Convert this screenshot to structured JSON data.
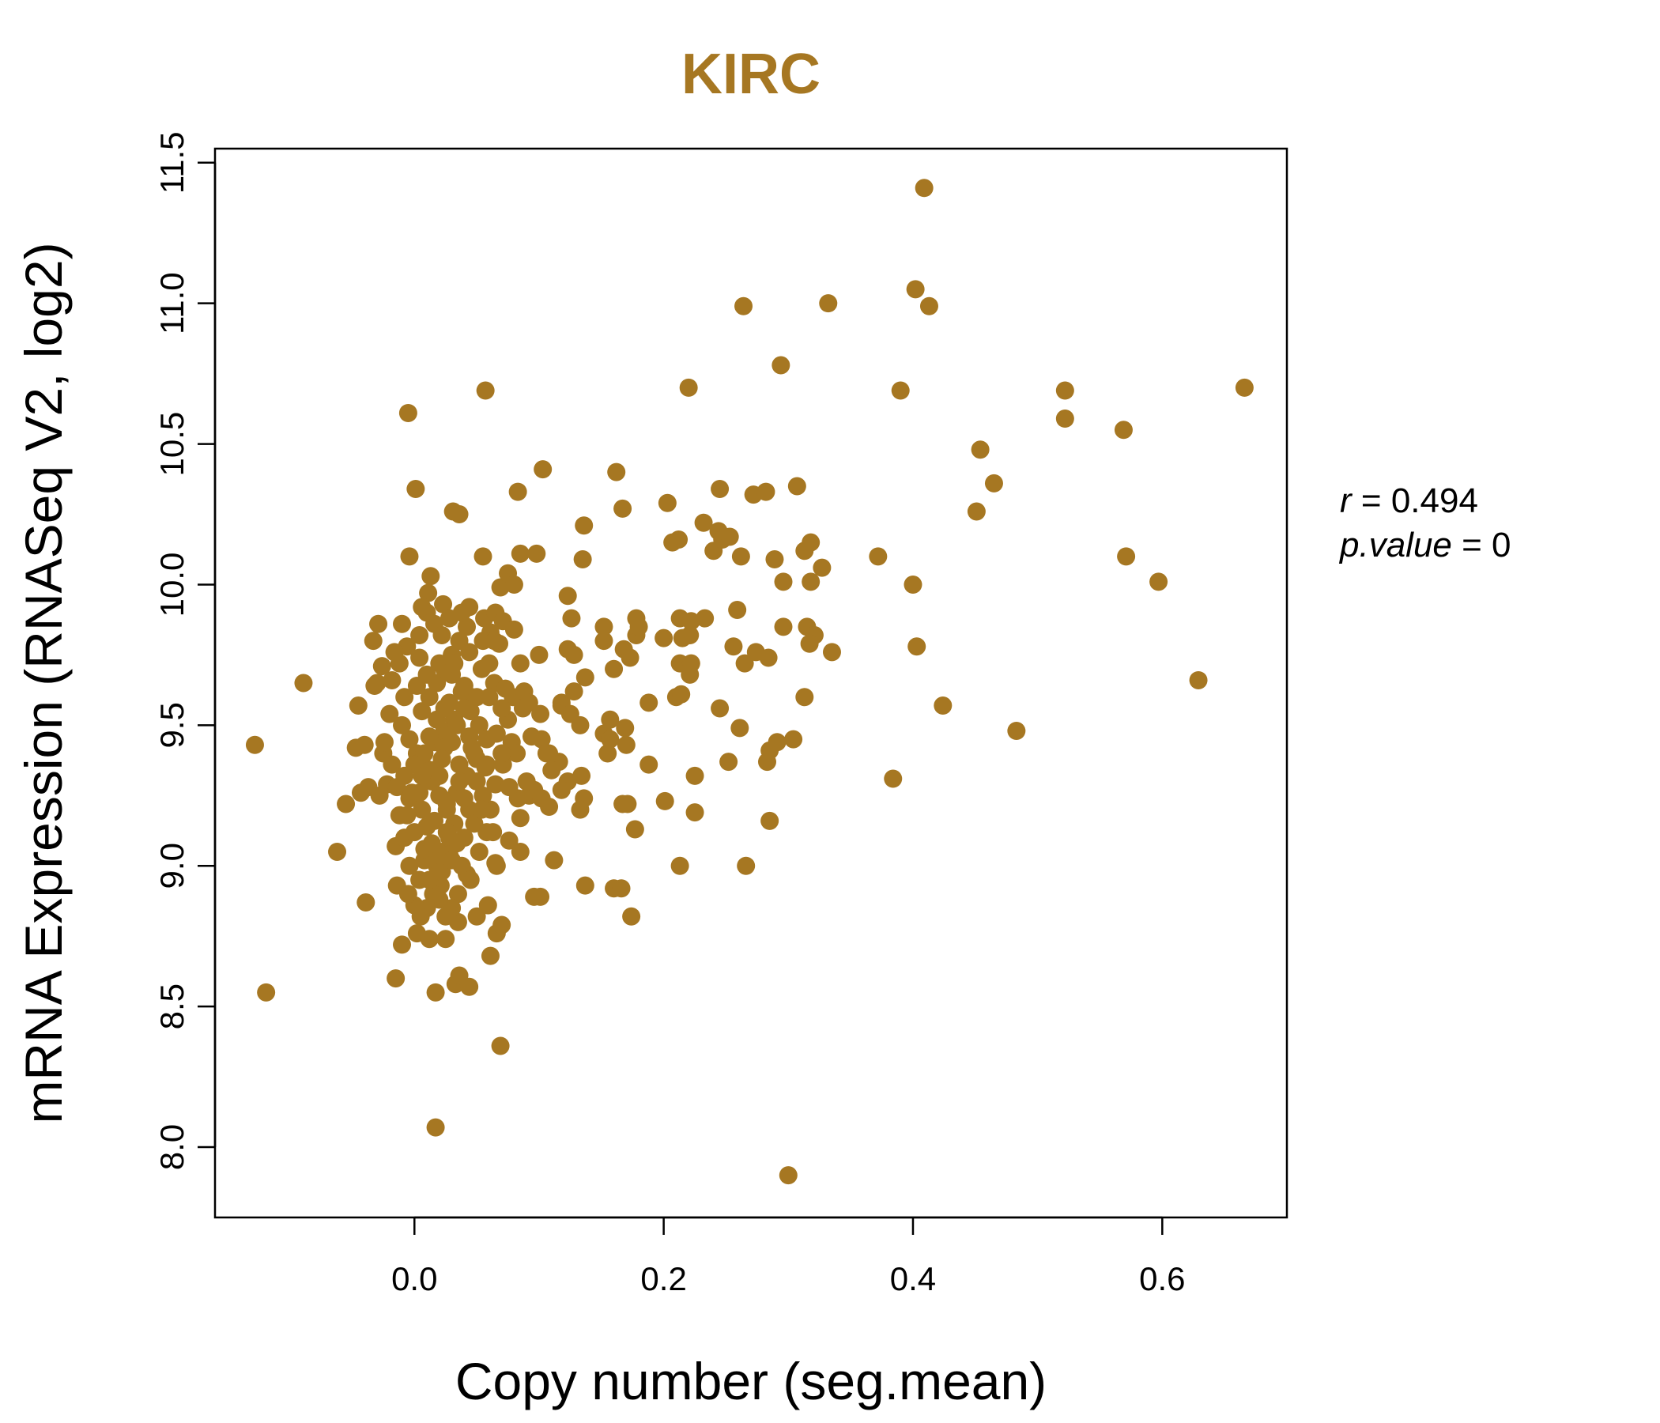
{
  "chart_data": {
    "type": "scatter",
    "title": "KIRC",
    "xlabel": "Copy number (seg.mean)",
    "ylabel": "mRNA Expression (RNASeq V2, log2)",
    "xlim": [
      -0.16,
      0.7
    ],
    "ylim": [
      7.75,
      11.55
    ],
    "xticks": [
      0.0,
      0.2,
      0.4,
      0.6
    ],
    "xtick_labels": [
      "0.0",
      "0.2",
      "0.4",
      "0.6"
    ],
    "yticks": [
      8.0,
      8.5,
      9.0,
      9.5,
      10.0,
      10.5,
      11.0,
      11.5
    ],
    "ytick_labels": [
      "8.0",
      "8.5",
      "9.0",
      "9.5",
      "10.0",
      "10.5",
      "11.0",
      "11.5"
    ],
    "color": "#A67722",
    "stats": {
      "r_label": "r",
      "r_value": "0.494",
      "p_label": "p.value",
      "p_value": "0"
    },
    "points": [
      [
        0.409,
        11.41
      ],
      [
        0.402,
        11.05
      ],
      [
        0.413,
        10.99
      ],
      [
        0.332,
        11.0
      ],
      [
        0.264,
        10.99
      ],
      [
        0.294,
        10.78
      ],
      [
        0.39,
        10.69
      ],
      [
        0.522,
        10.69
      ],
      [
        0.666,
        10.7
      ],
      [
        0.22,
        10.7
      ],
      [
        0.057,
        10.69
      ],
      [
        -0.005,
        10.61
      ],
      [
        0.522,
        10.59
      ],
      [
        0.569,
        10.55
      ],
      [
        0.454,
        10.48
      ],
      [
        0.465,
        10.36
      ],
      [
        0.451,
        10.26
      ],
      [
        0.571,
        10.1
      ],
      [
        0.597,
        10.01
      ],
      [
        0.372,
        10.1
      ],
      [
        0.4,
        10.0
      ],
      [
        0.403,
        9.78
      ],
      [
        0.629,
        9.66
      ],
      [
        0.424,
        9.57
      ],
      [
        0.483,
        9.48
      ],
      [
        0.384,
        9.31
      ],
      [
        0.3,
        7.9
      ],
      [
        0.017,
        8.07
      ],
      [
        0.069,
        8.36
      ],
      [
        -0.119,
        8.55
      ],
      [
        -0.128,
        9.43
      ],
      [
        -0.089,
        9.65
      ],
      [
        -0.062,
        9.05
      ],
      [
        -0.055,
        9.22
      ],
      [
        -0.039,
        8.87
      ],
      [
        -0.015,
        8.6
      ],
      [
        0.017,
        8.55
      ],
      [
        0.033,
        8.58
      ],
      [
        0.036,
        8.61
      ],
      [
        0.044,
        8.57
      ],
      [
        0.061,
        8.68
      ],
      [
        0.066,
        8.76
      ],
      [
        0.07,
        8.79
      ],
      [
        -0.01,
        8.72
      ],
      [
        0.002,
        8.76
      ],
      [
        0.012,
        8.74
      ],
      [
        0.025,
        8.74
      ],
      [
        0.035,
        8.8
      ],
      [
        0.05,
        8.82
      ],
      [
        0.059,
        8.86
      ],
      [
        0.021,
        8.93
      ],
      [
        0.004,
        8.95
      ],
      [
        0.042,
        8.97
      ],
      [
        0.066,
        9.0
      ],
      [
        -0.014,
        8.93
      ],
      [
        0.055,
        10.1
      ],
      [
        0.001,
        10.34
      ],
      [
        0.031,
        10.26
      ],
      [
        0.036,
        10.25
      ],
      [
        -0.004,
        10.1
      ],
      [
        0.013,
        10.03
      ],
      [
        0.011,
        9.97
      ],
      [
        0.023,
        9.93
      ],
      [
        0.044,
        9.92
      ],
      [
        0.069,
        9.99
      ],
      [
        0.075,
        10.04
      ],
      [
        0.085,
        10.11
      ],
      [
        0.098,
        10.11
      ],
      [
        0.083,
        10.33
      ],
      [
        0.103,
        10.41
      ],
      [
        0.08,
        10.0
      ],
      [
        0.056,
        9.88
      ],
      [
        0.065,
        9.9
      ],
      [
        0.071,
        9.87
      ],
      [
        0.061,
        9.83
      ],
      [
        0.055,
        9.8
      ],
      [
        0.068,
        9.79
      ],
      [
        -0.029,
        9.86
      ],
      [
        -0.033,
        9.8
      ],
      [
        -0.026,
        9.71
      ],
      [
        -0.03,
        9.65
      ],
      [
        -0.045,
        9.57
      ],
      [
        -0.047,
        9.42
      ],
      [
        -0.04,
        9.43
      ],
      [
        -0.025,
        9.4
      ],
      [
        -0.018,
        9.36
      ],
      [
        -0.037,
        9.28
      ],
      [
        -0.043,
        9.26
      ],
      [
        -0.028,
        9.25
      ],
      [
        -0.022,
        9.29
      ],
      [
        -0.012,
        9.18
      ],
      [
        -0.015,
        9.07
      ],
      [
        -0.008,
        9.1
      ],
      [
        -0.004,
        9.0
      ],
      [
        0.008,
        9.02
      ],
      [
        0.064,
        9.65
      ],
      [
        0.073,
        9.63
      ],
      [
        0.079,
        9.6
      ],
      [
        0.087,
        9.56
      ],
      [
        0.075,
        9.52
      ],
      [
        0.066,
        9.47
      ],
      [
        0.078,
        9.44
      ],
      [
        0.082,
        9.4
      ],
      [
        0.071,
        9.36
      ],
      [
        0.065,
        9.29
      ],
      [
        0.083,
        9.24
      ],
      [
        0.092,
        9.25
      ],
      [
        0.085,
        9.17
      ],
      [
        0.061,
        9.2
      ],
      [
        0.063,
        9.12
      ],
      [
        0.076,
        9.09
      ],
      [
        0.085,
        9.05
      ],
      [
        0.065,
        9.01
      ],
      [
        0.096,
        8.89
      ],
      [
        0.101,
        8.89
      ],
      [
        0.112,
        9.02
      ],
      [
        0.102,
        9.24
      ],
      [
        0.108,
        9.21
      ],
      [
        0.096,
        9.27
      ],
      [
        0.102,
        9.45
      ],
      [
        0.108,
        9.4
      ],
      [
        0.116,
        9.37
      ],
      [
        0.123,
        9.3
      ],
      [
        0.118,
        9.27
      ],
      [
        0.136,
        9.24
      ],
      [
        0.133,
        9.2
      ],
      [
        0.134,
        9.32
      ],
      [
        0.133,
        9.5
      ],
      [
        0.128,
        9.62
      ],
      [
        0.118,
        9.58
      ],
      [
        0.118,
        9.57
      ],
      [
        0.125,
        9.54
      ],
      [
        0.101,
        9.54
      ],
      [
        0.1,
        9.75
      ],
      [
        0.123,
        9.77
      ],
      [
        0.128,
        9.75
      ],
      [
        0.137,
        9.67
      ],
      [
        0.152,
        9.8
      ],
      [
        0.152,
        9.85
      ],
      [
        0.157,
        9.52
      ],
      [
        0.152,
        9.47
      ],
      [
        0.155,
        9.4
      ],
      [
        0.157,
        9.45
      ],
      [
        0.169,
        9.49
      ],
      [
        0.17,
        9.43
      ],
      [
        0.16,
        9.7
      ],
      [
        0.168,
        9.77
      ],
      [
        0.173,
        9.74
      ],
      [
        0.178,
        9.82
      ],
      [
        0.178,
        9.88
      ],
      [
        0.18,
        9.85
      ],
      [
        0.167,
        9.22
      ],
      [
        0.171,
        9.22
      ],
      [
        0.177,
        9.13
      ],
      [
        0.188,
        9.36
      ],
      [
        0.188,
        9.58
      ],
      [
        0.16,
        8.92
      ],
      [
        0.166,
        8.92
      ],
      [
        0.174,
        8.82
      ],
      [
        0.137,
        8.93
      ],
      [
        0.126,
        9.88
      ],
      [
        0.123,
        9.96
      ],
      [
        0.135,
        10.09
      ],
      [
        0.136,
        10.21
      ],
      [
        0.162,
        10.4
      ],
      [
        0.167,
        10.27
      ],
      [
        0.203,
        10.29
      ],
      [
        0.207,
        10.15
      ],
      [
        0.212,
        10.16
      ],
      [
        0.232,
        10.22
      ],
      [
        0.24,
        10.12
      ],
      [
        0.244,
        10.19
      ],
      [
        0.247,
        10.16
      ],
      [
        0.253,
        10.17
      ],
      [
        0.245,
        10.34
      ],
      [
        0.272,
        10.32
      ],
      [
        0.282,
        10.33
      ],
      [
        0.307,
        10.35
      ],
      [
        0.289,
        10.09
      ],
      [
        0.296,
        10.01
      ],
      [
        0.318,
        10.01
      ],
      [
        0.313,
        10.12
      ],
      [
        0.318,
        10.15
      ],
      [
        0.327,
        10.06
      ],
      [
        0.262,
        10.1
      ],
      [
        0.2,
        9.81
      ],
      [
        0.213,
        9.88
      ],
      [
        0.215,
        9.81
      ],
      [
        0.221,
        9.82
      ],
      [
        0.222,
        9.87
      ],
      [
        0.233,
        9.88
      ],
      [
        0.259,
        9.91
      ],
      [
        0.256,
        9.78
      ],
      [
        0.265,
        9.72
      ],
      [
        0.274,
        9.76
      ],
      [
        0.284,
        9.74
      ],
      [
        0.296,
        9.85
      ],
      [
        0.315,
        9.85
      ],
      [
        0.321,
        9.82
      ],
      [
        0.317,
        9.79
      ],
      [
        0.335,
        9.76
      ],
      [
        0.213,
        9.72
      ],
      [
        0.221,
        9.68
      ],
      [
        0.222,
        9.72
      ],
      [
        0.21,
        9.6
      ],
      [
        0.214,
        9.61
      ],
      [
        0.245,
        9.56
      ],
      [
        0.261,
        9.49
      ],
      [
        0.252,
        9.37
      ],
      [
        0.225,
        9.32
      ],
      [
        0.225,
        9.19
      ],
      [
        0.201,
        9.23
      ],
      [
        0.213,
        9.0
      ],
      [
        0.266,
        9.0
      ],
      [
        0.285,
        9.16
      ],
      [
        0.283,
        9.37
      ],
      [
        0.285,
        9.41
      ],
      [
        0.291,
        9.44
      ],
      [
        0.304,
        9.45
      ],
      [
        0.313,
        9.6
      ],
      [
        0.06,
        9.6
      ],
      [
        0.045,
        9.55
      ],
      [
        0.052,
        9.5
      ],
      [
        0.058,
        9.45
      ],
      [
        0.048,
        9.4
      ],
      [
        0.057,
        9.35
      ],
      [
        0.05,
        9.3
      ],
      [
        0.055,
        9.25
      ],
      [
        0.044,
        9.2
      ],
      [
        0.048,
        9.15
      ],
      [
        0.04,
        9.1
      ],
      [
        0.052,
        9.05
      ],
      [
        0.038,
        9.0
      ],
      [
        0.045,
        8.95
      ],
      [
        0.035,
        8.9
      ],
      [
        0.03,
        8.85
      ],
      [
        0.025,
        8.82
      ],
      [
        0.02,
        8.88
      ],
      [
        0.015,
        8.9
      ],
      [
        0.01,
        8.85
      ],
      [
        0.005,
        8.82
      ],
      [
        0.0,
        8.86
      ],
      [
        -0.005,
        8.9
      ],
      [
        0.012,
        8.95
      ],
      [
        0.018,
        9.0
      ],
      [
        0.022,
        9.05
      ],
      [
        0.028,
        9.1
      ],
      [
        0.032,
        9.15
      ],
      [
        0.026,
        9.2
      ],
      [
        0.02,
        9.25
      ],
      [
        0.014,
        9.3
      ],
      [
        0.008,
        9.35
      ],
      [
        0.002,
        9.4
      ],
      [
        -0.004,
        9.45
      ],
      [
        -0.01,
        9.5
      ],
      [
        0.006,
        9.55
      ],
      [
        0.012,
        9.6
      ],
      [
        0.018,
        9.65
      ],
      [
        0.024,
        9.7
      ],
      [
        0.03,
        9.75
      ],
      [
        0.036,
        9.8
      ],
      [
        0.042,
        9.85
      ],
      [
        0.038,
        9.9
      ],
      [
        0.028,
        9.88
      ],
      [
        0.016,
        9.86
      ],
      [
        0.004,
        9.82
      ],
      [
        -0.006,
        9.78
      ],
      [
        -0.012,
        9.72
      ],
      [
        -0.018,
        9.66
      ],
      [
        -0.008,
        9.6
      ],
      [
        0.002,
        9.64
      ],
      [
        0.01,
        9.68
      ],
      [
        0.02,
        9.72
      ],
      [
        0.03,
        9.68
      ],
      [
        0.04,
        9.64
      ],
      [
        0.046,
        9.6
      ],
      [
        0.04,
        9.56
      ],
      [
        0.032,
        9.52
      ],
      [
        0.024,
        9.48
      ],
      [
        0.016,
        9.44
      ],
      [
        0.008,
        9.4
      ],
      [
        0.0,
        9.36
      ],
      [
        -0.008,
        9.32
      ],
      [
        -0.014,
        9.28
      ],
      [
        -0.004,
        9.24
      ],
      [
        0.006,
        9.2
      ],
      [
        0.016,
        9.16
      ],
      [
        0.026,
        9.12
      ],
      [
        0.034,
        9.08
      ],
      [
        0.028,
        9.04
      ],
      [
        0.018,
        9.02
      ],
      [
        0.008,
        9.06
      ],
      [
        0.0,
        9.12
      ],
      [
        -0.006,
        9.18
      ],
      [
        0.004,
        9.26
      ],
      [
        0.014,
        9.34
      ],
      [
        0.024,
        9.42
      ],
      [
        0.034,
        9.5
      ],
      [
        0.044,
        9.46
      ],
      [
        0.05,
        9.38
      ],
      [
        0.042,
        9.32
      ],
      [
        0.034,
        9.26
      ],
      [
        0.026,
        9.22
      ],
      [
        0.036,
        9.36
      ],
      [
        0.046,
        9.42
      ],
      [
        0.022,
        9.38
      ],
      [
        0.012,
        9.46
      ],
      [
        0.018,
        9.52
      ],
      [
        0.028,
        9.58
      ],
      [
        0.038,
        9.62
      ],
      [
        0.01,
        9.9
      ],
      [
        0.004,
        9.74
      ],
      [
        0.024,
        9.56
      ],
      [
        0.03,
        9.44
      ],
      [
        0.02,
        9.32
      ],
      [
        0.01,
        9.14
      ],
      [
        0.014,
        9.08
      ],
      [
        0.022,
        8.98
      ],
      [
        0.03,
        9.02
      ],
      [
        0.04,
        9.24
      ],
      [
        0.054,
        9.2
      ],
      [
        0.058,
        9.12
      ],
      [
        0.05,
        9.6
      ],
      [
        0.06,
        9.72
      ],
      [
        0.07,
        9.56
      ],
      [
        0.076,
        9.28
      ],
      [
        0.09,
        9.3
      ],
      [
        0.094,
        9.46
      ],
      [
        0.088,
        9.62
      ],
      [
        0.11,
        9.34
      ],
      [
        0.106,
        9.4
      ],
      [
        0.092,
        9.58
      ],
      [
        0.08,
        9.84
      ],
      [
        0.085,
        9.72
      ],
      [
        0.07,
        9.4
      ],
      [
        -0.02,
        9.54
      ],
      [
        -0.024,
        9.44
      ],
      [
        -0.002,
        9.26
      ],
      [
        0.006,
        9.32
      ],
      [
        0.036,
        9.3
      ],
      [
        -0.032,
        9.64
      ],
      [
        -0.016,
        9.76
      ],
      [
        -0.01,
        9.86
      ],
      [
        0.006,
        9.92
      ],
      [
        0.022,
        9.82
      ],
      [
        0.032,
        9.72
      ],
      [
        0.044,
        9.76
      ],
      [
        0.054,
        9.7
      ],
      [
        0.064,
        9.8
      ],
      [
        0.058,
        9.36
      ]
    ]
  }
}
